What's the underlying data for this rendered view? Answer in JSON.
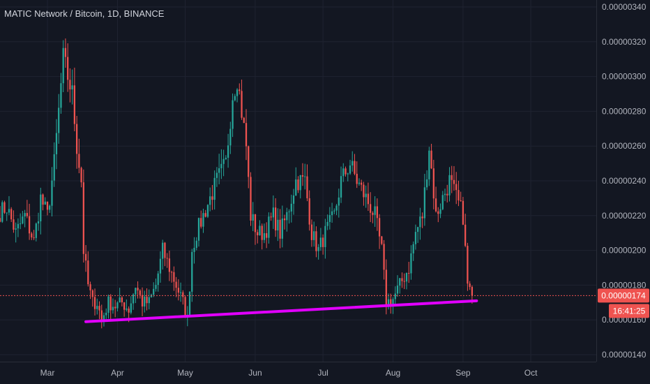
{
  "header": {
    "title": "MATIC Network / Bitcoin, 1D, BINANCE"
  },
  "colors": {
    "background": "#131722",
    "grid": "#1f2331",
    "up": "#26a69a",
    "down": "#ef5350",
    "trendline": "#e100ff",
    "price_tag": "#ef5350",
    "text": "#b2b5be"
  },
  "chart_data": {
    "type": "candlestick",
    "symbol": "MATIC Network / Bitcoin",
    "interval": "1D",
    "exchange": "BINANCE",
    "ylim": [
      1.36e-06,
      3.44e-06
    ],
    "yticks": [
      "0.00000140",
      "0.00000160",
      "0.00000180",
      "0.00000200",
      "0.00000220",
      "0.00000240",
      "0.00000260",
      "0.00000280",
      "0.00000300",
      "0.00000320",
      "0.00000340"
    ],
    "ytick_values": [
      1.4e-06,
      1.6e-06,
      1.8e-06,
      2e-06,
      2.2e-06,
      2.4e-06,
      2.6e-06,
      2.8e-06,
      3e-06,
      3.2e-06,
      3.4e-06
    ],
    "xticks": [
      "Mar",
      "Apr",
      "May",
      "Jun",
      "Jul",
      "Aug",
      "Sep",
      "Oct"
    ],
    "xtick_days": [
      0,
      31,
      61,
      92,
      122,
      153,
      184,
      214
    ],
    "day_range": [
      -21,
      243
    ],
    "anchors": [
      [
        -21,
        2.22e-06
      ],
      [
        -18,
        2.25e-06
      ],
      [
        -14,
        2.1e-06
      ],
      [
        -10,
        2.2e-06
      ],
      [
        -6,
        2.05e-06
      ],
      [
        -3,
        2.3e-06
      ],
      [
        0,
        2.2e-06
      ],
      [
        3,
        2.5e-06
      ],
      [
        5,
        2.8e-06
      ],
      [
        7,
        3.1e-06
      ],
      [
        9,
        3e-06
      ],
      [
        11,
        2.9e-06
      ],
      [
        13,
        2.6e-06
      ],
      [
        15,
        2.4e-06
      ],
      [
        16,
        2e-06
      ],
      [
        18,
        1.8e-06
      ],
      [
        20,
        1.7e-06
      ],
      [
        22,
        1.7e-06
      ],
      [
        24,
        1.6e-06
      ],
      [
        27,
        1.7e-06
      ],
      [
        30,
        1.68e-06
      ],
      [
        33,
        1.7e-06
      ],
      [
        36,
        1.66e-06
      ],
      [
        39,
        1.8e-06
      ],
      [
        42,
        1.7e-06
      ],
      [
        45,
        1.7e-06
      ],
      [
        48,
        1.8e-06
      ],
      [
        51,
        2e-06
      ],
      [
        54,
        1.9e-06
      ],
      [
        57,
        1.8e-06
      ],
      [
        60,
        1.7e-06
      ],
      [
        62,
        1.6e-06
      ],
      [
        64,
        2e-06
      ],
      [
        66,
        2.1e-06
      ],
      [
        69,
        2.2e-06
      ],
      [
        72,
        2.3e-06
      ],
      [
        75,
        2.4e-06
      ],
      [
        79,
        2.5e-06
      ],
      [
        82,
        2.9e-06
      ],
      [
        84,
        3e-06
      ],
      [
        86,
        2.8e-06
      ],
      [
        88,
        2.6e-06
      ],
      [
        90,
        2.2e-06
      ],
      [
        93,
        2.1e-06
      ],
      [
        96,
        2.1e-06
      ],
      [
        100,
        2.2e-06
      ],
      [
        103,
        2.1e-06
      ],
      [
        106,
        2.2e-06
      ],
      [
        110,
        2.4e-06
      ],
      [
        114,
        2.4e-06
      ],
      [
        117,
        2.1e-06
      ],
      [
        120,
        2e-06
      ],
      [
        123,
        2.1e-06
      ],
      [
        127,
        2.2e-06
      ],
      [
        130,
        2.4e-06
      ],
      [
        134,
        2.5e-06
      ],
      [
        137,
        2.4e-06
      ],
      [
        141,
        2.3e-06
      ],
      [
        145,
        2.2e-06
      ],
      [
        148,
        2e-06
      ],
      [
        150,
        1.7e-06
      ],
      [
        153,
        1.72e-06
      ],
      [
        156,
        1.8e-06
      ],
      [
        160,
        1.9e-06
      ],
      [
        163,
        2.1e-06
      ],
      [
        166,
        2.2e-06
      ],
      [
        169,
        2.6e-06
      ],
      [
        172,
        2.2e-06
      ],
      [
        175,
        2.3e-06
      ],
      [
        178,
        2.4e-06
      ],
      [
        181,
        2.3e-06
      ],
      [
        184,
        2.2e-06
      ],
      [
        186,
        1.8e-06
      ],
      [
        188,
        1.74e-06
      ]
    ],
    "trendline": {
      "start": [
        17,
        1.59e-06
      ],
      "end": [
        190,
        1.71e-06
      ],
      "color": "#e100ff"
    },
    "last_price": "0.00000174",
    "last_value": 1.74e-06,
    "countdown": "16:41:25",
    "grid": true,
    "legend": "none"
  }
}
